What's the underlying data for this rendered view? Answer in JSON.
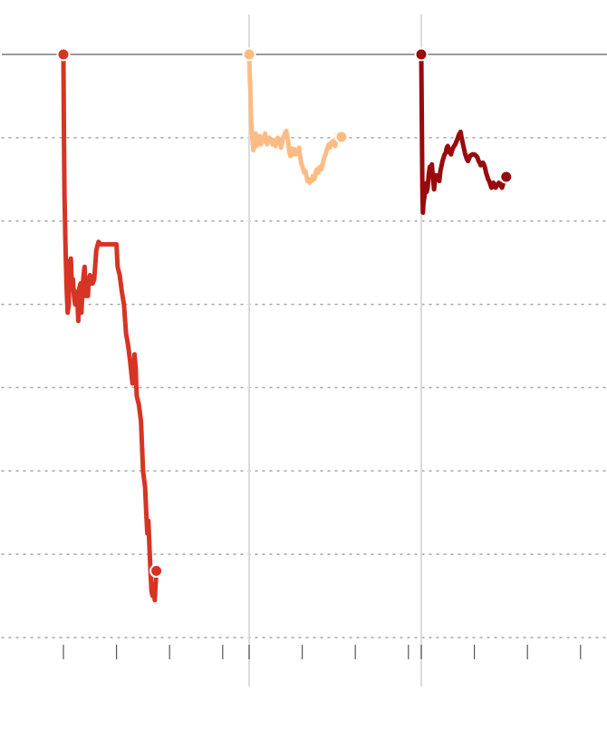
{
  "chart_data": {
    "type": "line",
    "title": "",
    "xlabel": "",
    "ylabel": "",
    "grid": true,
    "legend": "none",
    "ylim": [
      -70,
      0
    ],
    "grid_values": [
      0,
      -10,
      -20,
      -30,
      -40,
      -50,
      -60,
      -70
    ],
    "panels": [
      {
        "ticks": 4,
        "xlim": [
          0,
          3
        ]
      },
      {
        "ticks": 4,
        "xlim": [
          0,
          3
        ]
      },
      {
        "ticks": 4,
        "xlim": [
          0,
          3
        ]
      }
    ],
    "series": [
      {
        "color": "#d63424",
        "panel": 0,
        "points": [
          [
            0,
            0
          ],
          [
            0.01,
            -10
          ],
          [
            0.02,
            -17
          ],
          [
            0.04,
            -23
          ],
          [
            0.06,
            -28
          ],
          [
            0.08,
            -31
          ],
          [
            0.1,
            -30
          ],
          [
            0.12,
            -25
          ],
          [
            0.14,
            -24.5
          ],
          [
            0.16,
            -28
          ],
          [
            0.18,
            -27
          ],
          [
            0.2,
            -29
          ],
          [
            0.22,
            -30
          ],
          [
            0.24,
            -28.5
          ],
          [
            0.26,
            -29
          ],
          [
            0.28,
            -32
          ],
          [
            0.3,
            -28
          ],
          [
            0.32,
            -27.5
          ],
          [
            0.34,
            -31
          ],
          [
            0.36,
            -28
          ],
          [
            0.38,
            -26.5
          ],
          [
            0.4,
            -25.5
          ],
          [
            0.42,
            -29
          ],
          [
            0.44,
            -28
          ],
          [
            0.46,
            -29
          ],
          [
            0.48,
            -27
          ],
          [
            0.5,
            -26.5
          ],
          [
            0.52,
            -27.5
          ],
          [
            0.55,
            -27.5
          ],
          [
            0.58,
            -27
          ],
          [
            0.62,
            -23.5
          ],
          [
            0.66,
            -22.5
          ],
          [
            0.7,
            -22.8
          ],
          [
            0.8,
            -22.8
          ],
          [
            0.9,
            -22.8
          ],
          [
            1.0,
            -22.8
          ],
          [
            1.02,
            -25.5
          ],
          [
            1.06,
            -26.5
          ],
          [
            1.1,
            -28.5
          ],
          [
            1.14,
            -30
          ],
          [
            1.18,
            -33.5
          ],
          [
            1.22,
            -35
          ],
          [
            1.26,
            -37
          ],
          [
            1.3,
            -39.5
          ],
          [
            1.32,
            -38.5
          ],
          [
            1.34,
            -36
          ],
          [
            1.36,
            -37.5
          ],
          [
            1.38,
            -41
          ],
          [
            1.42,
            -42
          ],
          [
            1.46,
            -44
          ],
          [
            1.5,
            -50
          ],
          [
            1.54,
            -52
          ],
          [
            1.56,
            -55
          ],
          [
            1.58,
            -57.5
          ],
          [
            1.6,
            -56
          ],
          [
            1.62,
            -59
          ],
          [
            1.64,
            -62
          ],
          [
            1.66,
            -64.5
          ],
          [
            1.68,
            -65
          ],
          [
            1.7,
            -64
          ],
          [
            1.72,
            -65.5
          ],
          [
            1.75,
            -62
          ]
        ]
      },
      {
        "color": "#fdbb84",
        "panel": 1,
        "points": [
          [
            0,
            0
          ],
          [
            0.02,
            -4
          ],
          [
            0.04,
            -8
          ],
          [
            0.06,
            -10
          ],
          [
            0.08,
            -11.5
          ],
          [
            0.1,
            -10.5
          ],
          [
            0.12,
            -9.5
          ],
          [
            0.14,
            -11
          ],
          [
            0.16,
            -10
          ],
          [
            0.18,
            -10.5
          ],
          [
            0.2,
            -9.8
          ],
          [
            0.22,
            -10.8
          ],
          [
            0.24,
            -10.2
          ],
          [
            0.26,
            -10.5
          ],
          [
            0.28,
            -10
          ],
          [
            0.3,
            -9.5
          ],
          [
            0.32,
            -10.2
          ],
          [
            0.34,
            -10.8
          ],
          [
            0.36,
            -10.4
          ],
          [
            0.38,
            -10
          ],
          [
            0.4,
            -10.5
          ],
          [
            0.42,
            -10.2
          ],
          [
            0.44,
            -10.8
          ],
          [
            0.46,
            -10.3
          ],
          [
            0.48,
            -10.6
          ],
          [
            0.5,
            -11
          ],
          [
            0.52,
            -10.5
          ],
          [
            0.54,
            -10
          ],
          [
            0.56,
            -10.5
          ],
          [
            0.58,
            -10.2
          ],
          [
            0.6,
            -11.2
          ],
          [
            0.62,
            -10.6
          ],
          [
            0.64,
            -10
          ],
          [
            0.66,
            -9.8
          ],
          [
            0.68,
            -9.4
          ],
          [
            0.7,
            -9.2
          ],
          [
            0.72,
            -10
          ],
          [
            0.74,
            -10.8
          ],
          [
            0.76,
            -11.8
          ],
          [
            0.78,
            -12.2
          ],
          [
            0.8,
            -12
          ],
          [
            0.82,
            -11.3
          ],
          [
            0.84,
            -12
          ],
          [
            0.86,
            -11.4
          ],
          [
            0.88,
            -12
          ],
          [
            0.9,
            -11.6
          ],
          [
            0.92,
            -11.8
          ],
          [
            0.94,
            -11.2
          ],
          [
            0.96,
            -12.2
          ],
          [
            0.98,
            -13
          ],
          [
            1.0,
            -13.4
          ],
          [
            1.02,
            -13.8
          ],
          [
            1.04,
            -14.2
          ],
          [
            1.06,
            -14
          ],
          [
            1.08,
            -14.6
          ],
          [
            1.1,
            -15.2
          ],
          [
            1.12,
            -15
          ],
          [
            1.14,
            -15.4
          ],
          [
            1.16,
            -15
          ],
          [
            1.18,
            -15.2
          ],
          [
            1.2,
            -14.6
          ],
          [
            1.22,
            -15
          ],
          [
            1.24,
            -14.8
          ],
          [
            1.26,
            -14
          ],
          [
            1.28,
            -13.8
          ],
          [
            1.3,
            -14.2
          ],
          [
            1.32,
            -13.6
          ],
          [
            1.34,
            -13.5
          ],
          [
            1.36,
            -13.8
          ],
          [
            1.38,
            -13.2
          ],
          [
            1.4,
            -12.8
          ],
          [
            1.42,
            -12.3
          ],
          [
            1.44,
            -12
          ],
          [
            1.46,
            -11.5
          ],
          [
            1.48,
            -11.2
          ],
          [
            1.5,
            -10.8
          ],
          [
            1.52,
            -11.2
          ],
          [
            1.54,
            -10.6
          ],
          [
            1.56,
            -10.8
          ],
          [
            1.58,
            -10.4
          ],
          [
            1.6,
            -10.6
          ],
          [
            1.62,
            -11
          ],
          [
            1.64,
            -10.2
          ],
          [
            1.66,
            -9.6
          ],
          [
            1.68,
            -10.2
          ],
          [
            1.7,
            -9.8
          ],
          [
            1.72,
            -10
          ],
          [
            1.74,
            -9.9
          ]
        ]
      },
      {
        "color": "#990a0c",
        "panel": 2,
        "points": [
          [
            0,
            0
          ],
          [
            0.01,
            -8
          ],
          [
            0.02,
            -16
          ],
          [
            0.03,
            -19
          ],
          [
            0.04,
            -18
          ],
          [
            0.06,
            -17
          ],
          [
            0.08,
            -15.5
          ],
          [
            0.1,
            -16.5
          ],
          [
            0.12,
            -16
          ],
          [
            0.14,
            -14.5
          ],
          [
            0.16,
            -13.5
          ],
          [
            0.18,
            -14.2
          ],
          [
            0.2,
            -13.2
          ],
          [
            0.22,
            -14.8
          ],
          [
            0.24,
            -16.2
          ],
          [
            0.26,
            -15
          ],
          [
            0.28,
            -14.5
          ],
          [
            0.3,
            -15
          ],
          [
            0.32,
            -14.6
          ],
          [
            0.34,
            -15.2
          ],
          [
            0.36,
            -14
          ],
          [
            0.38,
            -13.4
          ],
          [
            0.4,
            -12.8
          ],
          [
            0.42,
            -12.4
          ],
          [
            0.44,
            -12
          ],
          [
            0.46,
            -11.8
          ],
          [
            0.48,
            -11.2
          ],
          [
            0.5,
            -11
          ],
          [
            0.52,
            -11.4
          ],
          [
            0.54,
            -11.8
          ],
          [
            0.56,
            -12
          ],
          [
            0.58,
            -11.5
          ],
          [
            0.6,
            -11.2
          ],
          [
            0.62,
            -11
          ],
          [
            0.64,
            -10.8
          ],
          [
            0.66,
            -10.5
          ],
          [
            0.68,
            -10.2
          ],
          [
            0.7,
            -9.8
          ],
          [
            0.72,
            -9.5
          ],
          [
            0.74,
            -9.3
          ],
          [
            0.76,
            -10
          ],
          [
            0.78,
            -10.6
          ],
          [
            0.8,
            -11.2
          ],
          [
            0.82,
            -11.8
          ],
          [
            0.84,
            -12.2
          ],
          [
            0.86,
            -12.6
          ],
          [
            0.88,
            -12.8
          ],
          [
            0.9,
            -12.5
          ],
          [
            0.92,
            -12.2
          ],
          [
            0.94,
            -12.1
          ],
          [
            0.96,
            -12
          ],
          [
            0.98,
            -12
          ],
          [
            1.0,
            -12
          ],
          [
            1.02,
            -12.1
          ],
          [
            1.04,
            -12.2
          ],
          [
            1.06,
            -12.4
          ],
          [
            1.08,
            -12.8
          ],
          [
            1.1,
            -13
          ],
          [
            1.12,
            -13.3
          ],
          [
            1.14,
            -13.1
          ],
          [
            1.16,
            -13
          ],
          [
            1.18,
            -13.2
          ],
          [
            1.2,
            -13.6
          ],
          [
            1.22,
            -14.2
          ],
          [
            1.24,
            -14.6
          ],
          [
            1.26,
            -15
          ],
          [
            1.28,
            -15.2
          ],
          [
            1.3,
            -15.6
          ],
          [
            1.32,
            -16
          ],
          [
            1.34,
            -15.8
          ],
          [
            1.36,
            -15.4
          ],
          [
            1.38,
            -15.8
          ],
          [
            1.4,
            -16
          ],
          [
            1.42,
            -15.8
          ],
          [
            1.44,
            -15.6
          ],
          [
            1.46,
            -15.4
          ],
          [
            1.48,
            -15.6
          ],
          [
            1.5,
            -15.8
          ],
          [
            1.52,
            -16
          ],
          [
            1.54,
            -15.6
          ],
          [
            1.56,
            -15
          ],
          [
            1.58,
            -14.8
          ],
          [
            1.6,
            -14.7
          ]
        ]
      }
    ]
  }
}
